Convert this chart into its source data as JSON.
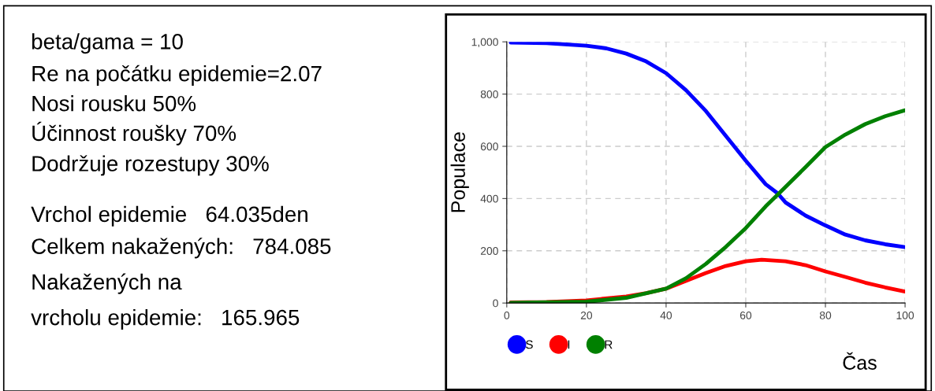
{
  "chart_data": [
    {
      "type": "other",
      "annotations": [
        "beta/gama = 10",
        "Re na počátku epidemie=2.07",
        "Nosi rousku 50%",
        "Účinnost roušky 70%",
        "Dodržuje rozestupy 30%",
        "Vrchol epidemie   64.035den",
        "Celkem nakažených:   784.085",
        "Nakažených na",
        "vrcholu epidemie:   165.965"
      ]
    },
    {
      "type": "line",
      "xlabel": "Čas",
      "ylabel": "Populace",
      "xlim": [
        0,
        100
      ],
      "xticks": [
        0,
        20,
        40,
        60,
        80,
        100
      ],
      "ylim": [
        0,
        1000
      ],
      "yticks": [
        0,
        200,
        400,
        600,
        800,
        {
          "value": 1000,
          "label": "1,000"
        }
      ],
      "grid": true,
      "legend": "bottom left",
      "line_style": "solid",
      "series": [
        {
          "name": "S",
          "color": "#0000ff",
          "x": [
            1,
            10,
            20,
            25,
            30,
            35,
            40,
            45,
            50,
            55,
            60,
            65,
            68,
            70,
            75,
            80,
            85,
            90,
            95,
            100
          ],
          "values": [
            997,
            995,
            985,
            975,
            955,
            925,
            880,
            815,
            735,
            640,
            545,
            455,
            420,
            385,
            335,
            297,
            262,
            240,
            225,
            214
          ]
        },
        {
          "name": "I",
          "color": "#ff0000",
          "x": [
            1,
            10,
            20,
            30,
            35,
            40,
            45,
            50,
            55,
            60,
            64,
            70,
            75,
            80,
            85,
            90,
            95,
            100
          ],
          "values": [
            2,
            4,
            10,
            25,
            38,
            55,
            85,
            115,
            142,
            160,
            166,
            160,
            145,
            121,
            100,
            78,
            60,
            44
          ]
        },
        {
          "name": "R",
          "color": "#008000",
          "x": [
            1,
            20,
            30,
            40,
            45,
            50,
            55,
            60,
            65,
            68,
            70,
            75,
            80,
            85,
            90,
            95,
            100
          ],
          "values": [
            1,
            5,
            20,
            55,
            95,
            150,
            215,
            287,
            370,
            415,
            445,
            520,
            597,
            645,
            685,
            715,
            738
          ]
        }
      ]
    }
  ]
}
